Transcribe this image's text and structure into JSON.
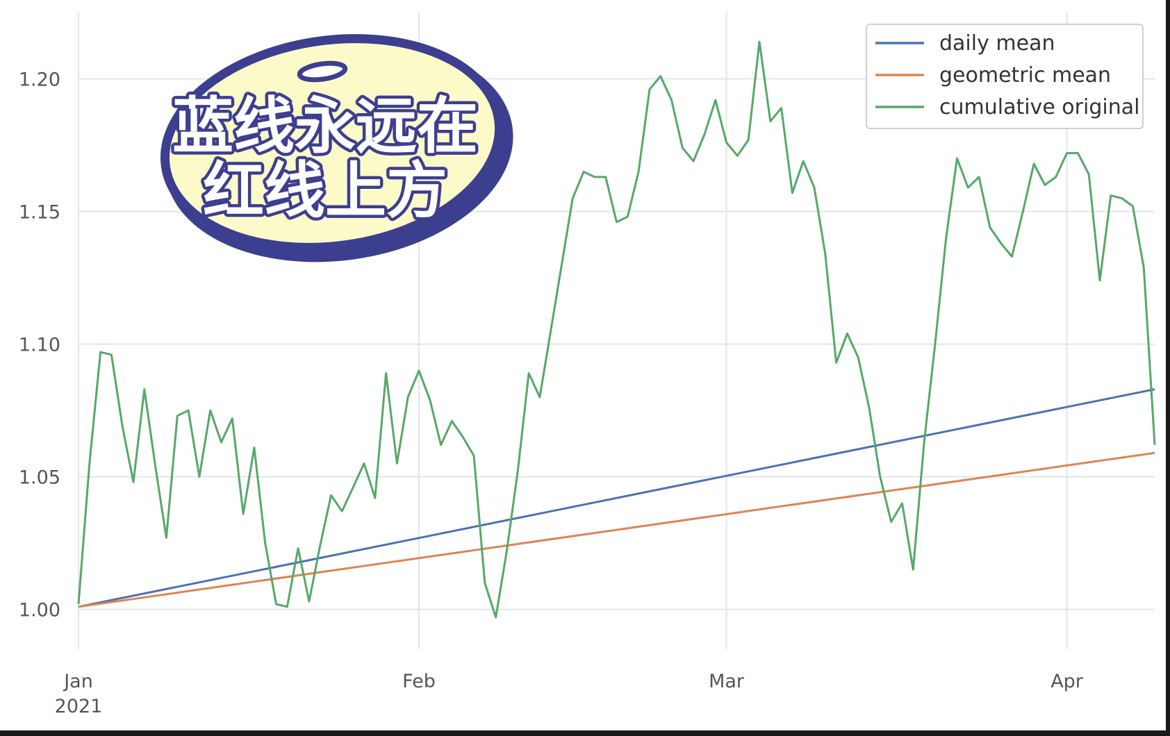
{
  "chart_data": {
    "type": "line",
    "title": "",
    "xlabel": "",
    "ylabel": "",
    "x_ticks": [
      {
        "date": "2021-01-01",
        "label": "Jan",
        "sublabel": "2021"
      },
      {
        "date": "2021-02-01",
        "label": "Feb",
        "sublabel": ""
      },
      {
        "date": "2021-03-01",
        "label": "Mar",
        "sublabel": ""
      },
      {
        "date": "2021-04-01",
        "label": "Apr",
        "sublabel": ""
      }
    ],
    "xlim": [
      "2021-01-01",
      "2021-04-09"
    ],
    "ylim": [
      0.985,
      1.225
    ],
    "y_ticks": [
      {
        "value": 1.0,
        "label": "1.00"
      },
      {
        "value": 1.05,
        "label": "1.05"
      },
      {
        "value": 1.1,
        "label": "1.10"
      },
      {
        "value": 1.15,
        "label": "1.15"
      },
      {
        "value": 1.2,
        "label": "1.20"
      }
    ],
    "grid": true,
    "legend_position": "top-right",
    "series": [
      {
        "name": "daily mean",
        "color": "#4c72b0",
        "points": [
          [
            "2021-01-01",
            1.001
          ],
          [
            "2021-04-09",
            1.083
          ]
        ]
      },
      {
        "name": "geometric mean",
        "color": "#dd8452",
        "points": [
          [
            "2021-01-01",
            1.001
          ],
          [
            "2021-04-09",
            1.059
          ]
        ]
      },
      {
        "name": "cumulative original",
        "color": "#55a868",
        "points": [
          [
            "2021-01-01",
            1.002
          ],
          [
            "2021-01-02",
            1.055
          ],
          [
            "2021-01-03",
            1.097
          ],
          [
            "2021-01-04",
            1.096
          ],
          [
            "2021-01-05",
            1.069
          ],
          [
            "2021-01-06",
            1.048
          ],
          [
            "2021-01-07",
            1.083
          ],
          [
            "2021-01-08",
            1.054
          ],
          [
            "2021-01-09",
            1.027
          ],
          [
            "2021-01-10",
            1.073
          ],
          [
            "2021-01-11",
            1.075
          ],
          [
            "2021-01-12",
            1.05
          ],
          [
            "2021-01-13",
            1.075
          ],
          [
            "2021-01-14",
            1.063
          ],
          [
            "2021-01-15",
            1.072
          ],
          [
            "2021-01-16",
            1.036
          ],
          [
            "2021-01-17",
            1.061
          ],
          [
            "2021-01-18",
            1.025
          ],
          [
            "2021-01-19",
            1.002
          ],
          [
            "2021-01-20",
            1.001
          ],
          [
            "2021-01-21",
            1.023
          ],
          [
            "2021-01-22",
            1.003
          ],
          [
            "2021-01-23",
            1.024
          ],
          [
            "2021-01-24",
            1.043
          ],
          [
            "2021-01-25",
            1.037
          ],
          [
            "2021-01-26",
            1.046
          ],
          [
            "2021-01-27",
            1.055
          ],
          [
            "2021-01-28",
            1.042
          ],
          [
            "2021-01-29",
            1.089
          ],
          [
            "2021-01-30",
            1.055
          ],
          [
            "2021-01-31",
            1.08
          ],
          [
            "2021-02-01",
            1.09
          ],
          [
            "2021-02-02",
            1.079
          ],
          [
            "2021-02-03",
            1.062
          ],
          [
            "2021-02-04",
            1.071
          ],
          [
            "2021-02-05",
            1.065
          ],
          [
            "2021-02-06",
            1.058
          ],
          [
            "2021-02-07",
            1.01
          ],
          [
            "2021-02-08",
            0.997
          ],
          [
            "2021-02-09",
            1.022
          ],
          [
            "2021-02-10",
            1.052
          ],
          [
            "2021-02-11",
            1.089
          ],
          [
            "2021-02-12",
            1.08
          ],
          [
            "2021-02-13",
            1.105
          ],
          [
            "2021-02-14",
            1.13
          ],
          [
            "2021-02-15",
            1.155
          ],
          [
            "2021-02-16",
            1.165
          ],
          [
            "2021-02-17",
            1.163
          ],
          [
            "2021-02-18",
            1.163
          ],
          [
            "2021-02-19",
            1.146
          ],
          [
            "2021-02-20",
            1.148
          ],
          [
            "2021-02-21",
            1.165
          ],
          [
            "2021-02-22",
            1.196
          ],
          [
            "2021-02-23",
            1.201
          ],
          [
            "2021-02-24",
            1.192
          ],
          [
            "2021-02-25",
            1.174
          ],
          [
            "2021-02-26",
            1.169
          ],
          [
            "2021-02-27",
            1.179
          ],
          [
            "2021-02-28",
            1.192
          ],
          [
            "2021-03-01",
            1.176
          ],
          [
            "2021-03-02",
            1.171
          ],
          [
            "2021-03-03",
            1.177
          ],
          [
            "2021-03-04",
            1.214
          ],
          [
            "2021-03-05",
            1.184
          ],
          [
            "2021-03-06",
            1.189
          ],
          [
            "2021-03-07",
            1.157
          ],
          [
            "2021-03-08",
            1.169
          ],
          [
            "2021-03-09",
            1.159
          ],
          [
            "2021-03-10",
            1.134
          ],
          [
            "2021-03-11",
            1.093
          ],
          [
            "2021-03-12",
            1.104
          ],
          [
            "2021-03-13",
            1.095
          ],
          [
            "2021-03-14",
            1.076
          ],
          [
            "2021-03-15",
            1.05
          ],
          [
            "2021-03-16",
            1.033
          ],
          [
            "2021-03-17",
            1.04
          ],
          [
            "2021-03-18",
            1.015
          ],
          [
            "2021-03-19",
            1.063
          ],
          [
            "2021-03-20",
            1.1
          ],
          [
            "2021-03-21",
            1.14
          ],
          [
            "2021-03-22",
            1.17
          ],
          [
            "2021-03-23",
            1.159
          ],
          [
            "2021-03-24",
            1.163
          ],
          [
            "2021-03-25",
            1.144
          ],
          [
            "2021-03-26",
            1.138
          ],
          [
            "2021-03-27",
            1.133
          ],
          [
            "2021-03-28",
            1.15
          ],
          [
            "2021-03-29",
            1.168
          ],
          [
            "2021-03-30",
            1.16
          ],
          [
            "2021-03-31",
            1.163
          ],
          [
            "2021-04-01",
            1.172
          ],
          [
            "2021-04-02",
            1.172
          ],
          [
            "2021-04-03",
            1.164
          ],
          [
            "2021-04-04",
            1.124
          ],
          [
            "2021-04-05",
            1.156
          ],
          [
            "2021-04-06",
            1.155
          ],
          [
            "2021-04-07",
            1.152
          ],
          [
            "2021-04-08",
            1.129
          ],
          [
            "2021-04-09",
            1.062
          ]
        ]
      }
    ]
  },
  "annotation": {
    "line1": "蓝线永远在",
    "line2": "红线上方",
    "fill": "#fcfac8",
    "border": "#3c3f8f"
  }
}
